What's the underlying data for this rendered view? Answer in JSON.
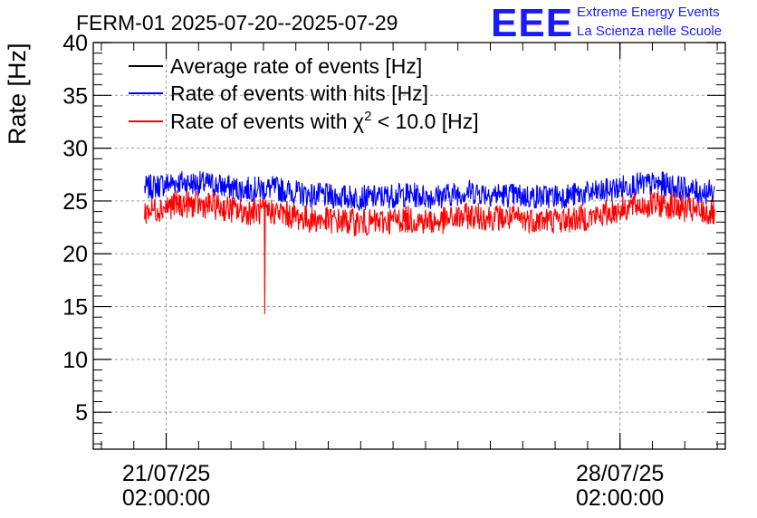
{
  "title": "FERM-01 2025-07-20--2025-07-29",
  "logo": {
    "mark": "EEE",
    "line1": "Extreme Energy Events",
    "line2": "La Scienza nelle Scuole",
    "color": "#1a1aff"
  },
  "chart_data": {
    "type": "line",
    "title": "FERM-01 2025-07-20--2025-07-29",
    "ylabel": "Rate [Hz]",
    "xlabel": "",
    "ylim": [
      1.5,
      40
    ],
    "yticks": [
      5,
      10,
      15,
      20,
      25,
      30,
      35,
      40
    ],
    "x_range_days": [
      "2025-07-19T23:00:00",
      "2025-07-29T17:00:00"
    ],
    "xticks": [
      {
        "date": "2025-07-21T02:00:00",
        "label_line1": "21/07/25",
        "label_line2": "02:00:00"
      },
      {
        "date": "2025-07-28T02:00:00",
        "label_line1": "28/07/25",
        "label_line2": "02:00:00"
      }
    ],
    "grid": true,
    "legend_position": "top-left",
    "series": [
      {
        "name": "Average rate of events [Hz]",
        "legend_text": "Average rate of events [Hz]",
        "color": "#000000",
        "values": []
      },
      {
        "name": "Rate of events with hits [Hz]",
        "legend_text": "Rate of events with hits [Hz]",
        "color": "#0000ff",
        "x": [
          "2025-07-20T18:00",
          "2025-07-21T06:00",
          "2025-07-21T18:00",
          "2025-07-22T06:00",
          "2025-07-22T18:00",
          "2025-07-23T06:00",
          "2025-07-23T18:00",
          "2025-07-24T06:00",
          "2025-07-24T18:00",
          "2025-07-25T06:00",
          "2025-07-25T18:00",
          "2025-07-26T06:00",
          "2025-07-26T18:00",
          "2025-07-27T06:00",
          "2025-07-27T18:00",
          "2025-07-28T06:00",
          "2025-07-28T18:00",
          "2025-07-29T06:00",
          "2025-07-29T13:00"
        ],
        "values": [
          26.2,
          26.8,
          26.6,
          26.1,
          26.2,
          25.6,
          25.4,
          25.3,
          25.6,
          25.4,
          25.9,
          25.6,
          25.4,
          25.5,
          25.8,
          26.5,
          26.6,
          25.9,
          25.8
        ],
        "band": 1.2
      },
      {
        "name": "Rate of events with χ2 < 10.0 [Hz]",
        "legend_prefix": "Rate of events with ",
        "legend_chi": "χ",
        "legend_sup": "2",
        "legend_suffix": " < 10.0 [Hz]",
        "color": "#ff0000",
        "x": [
          "2025-07-20T18:00",
          "2025-07-21T06:00",
          "2025-07-21T18:00",
          "2025-07-22T06:00",
          "2025-07-22T18:00",
          "2025-07-23T06:00",
          "2025-07-23T18:00",
          "2025-07-24T06:00",
          "2025-07-24T18:00",
          "2025-07-25T06:00",
          "2025-07-25T18:00",
          "2025-07-26T06:00",
          "2025-07-26T18:00",
          "2025-07-27T06:00",
          "2025-07-27T18:00",
          "2025-07-28T06:00",
          "2025-07-28T18:00",
          "2025-07-29T06:00",
          "2025-07-29T13:00"
        ],
        "values": [
          24.0,
          24.7,
          24.6,
          24.0,
          24.0,
          23.3,
          23.1,
          22.9,
          23.3,
          23.0,
          23.6,
          23.4,
          23.2,
          23.2,
          23.6,
          24.5,
          24.7,
          24.0,
          23.8
        ],
        "band": 1.3,
        "dip": {
          "x": "2025-07-22T14:30",
          "value": 14.3
        }
      }
    ]
  }
}
